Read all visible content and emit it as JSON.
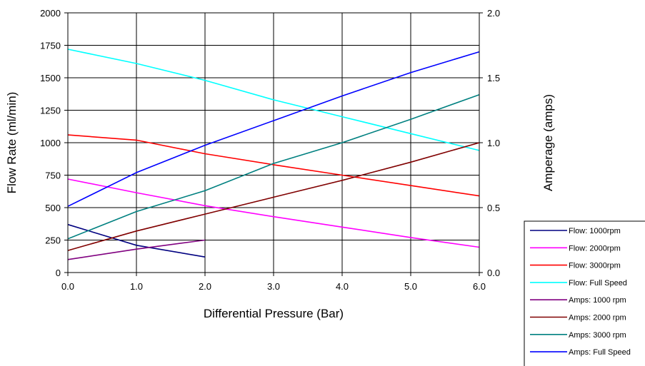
{
  "chart_data": {
    "type": "line",
    "xlabel": "Differential Pressure (Bar)",
    "ylabel": "Flow Rate (ml/min)",
    "y2label": "Amperage (amps)",
    "xlim": [
      0,
      6
    ],
    "ylim": [
      0,
      2000
    ],
    "y2lim": [
      0,
      2
    ],
    "x_ticks": [
      "0.0",
      "1.0",
      "2.0",
      "3.0",
      "4.0",
      "5.0",
      "6.0"
    ],
    "y_ticks": [
      "0",
      "250",
      "500",
      "750",
      "1000",
      "1250",
      "1500",
      "1750",
      "2000"
    ],
    "y2_ticks": [
      "0.0",
      "0.5",
      "1.0",
      "1.5",
      "2.0"
    ],
    "grid": true,
    "legend_position": "bottom-right",
    "series": [
      {
        "name": "Flow: 1000rpm",
        "axis": "left",
        "color": "#000080",
        "x": [
          0,
          1,
          2
        ],
        "values": [
          370,
          210,
          120
        ]
      },
      {
        "name": "Flow: 2000rpm",
        "axis": "left",
        "color": "#ff00ff",
        "x": [
          0,
          1,
          2,
          3,
          4,
          5,
          6
        ],
        "values": [
          720,
          615,
          515,
          430,
          350,
          270,
          195
        ]
      },
      {
        "name": "Flow: 3000rpm",
        "axis": "left",
        "color": "#ff0000",
        "x": [
          0,
          1,
          2,
          3,
          4,
          5,
          6
        ],
        "values": [
          1060,
          1020,
          915,
          830,
          750,
          670,
          590
        ]
      },
      {
        "name": "Flow: Full Speed",
        "axis": "left",
        "color": "#00ffff",
        "x": [
          0,
          1,
          2,
          3,
          4,
          5,
          6
        ],
        "values": [
          1720,
          1610,
          1480,
          1330,
          1200,
          1070,
          940
        ]
      },
      {
        "name": "Amps: 1000 rpm",
        "axis": "right",
        "color": "#800080",
        "x": [
          0,
          1,
          2
        ],
        "values": [
          0.1,
          0.18,
          0.25
        ]
      },
      {
        "name": "Amps: 2000 rpm",
        "axis": "right",
        "color": "#800000",
        "x": [
          0,
          1,
          2,
          3,
          4,
          5,
          6
        ],
        "values": [
          0.17,
          0.32,
          0.45,
          0.58,
          0.71,
          0.85,
          1.0
        ]
      },
      {
        "name": "Amps: 3000 rpm",
        "axis": "right",
        "color": "#008080",
        "x": [
          0,
          1,
          2,
          3,
          4,
          5,
          6
        ],
        "values": [
          0.26,
          0.47,
          0.63,
          0.84,
          1.0,
          1.18,
          1.37
        ]
      },
      {
        "name": "Amps: Full Speed",
        "axis": "right",
        "color": "#0000ff",
        "x": [
          0,
          1,
          2,
          3,
          4,
          5,
          6
        ],
        "values": [
          0.51,
          0.77,
          0.98,
          1.17,
          1.36,
          1.54,
          1.7
        ]
      }
    ]
  }
}
